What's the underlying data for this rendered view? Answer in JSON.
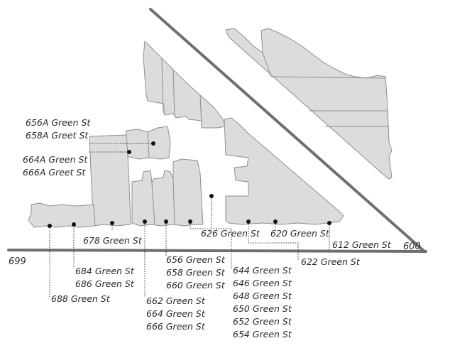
{
  "street_numbers": {
    "west_end": "699",
    "east_end": "600"
  },
  "labels": {
    "l656a": "656A Green St",
    "l658a": "658A Greet St",
    "l664a": "664A Green St",
    "l666a": "666A Greet St",
    "l678": "678 Green St",
    "l684": "684 Green St",
    "l686": "686 Green St",
    "l688": "688 Green St",
    "l656": "656 Green St",
    "l658": "658 Green St",
    "l660": "660 Green St",
    "l662": "662 Green St",
    "l664": "664 Green St",
    "l666": "666 Green St",
    "l626": "626 Green St",
    "l620": "620 Green St",
    "l612": "612 Green St",
    "l622": "622 Green St",
    "l644": "644 Green St",
    "l646": "646 Green St",
    "l648": "648 Green St",
    "l650": "650 Green St",
    "l652": "652 Green St",
    "l654": "654 Green St"
  },
  "colors": {
    "parcel_fill": "#dcdcdc",
    "parcel_stroke": "#8e8e8e",
    "street_line": "#6f6f6f",
    "marker": "#111111",
    "text": "#2a2a2a"
  }
}
